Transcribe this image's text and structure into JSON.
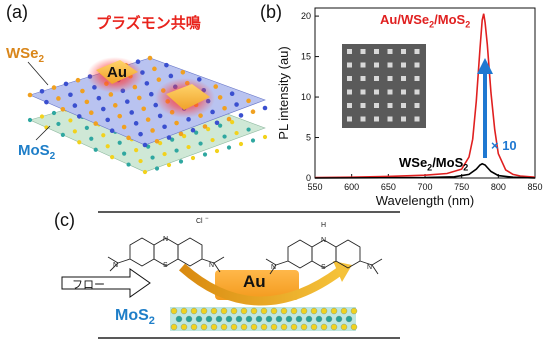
{
  "panel_a": {
    "label": "(a)",
    "title_jp": "プラズモン共鳴",
    "au_label": "Au",
    "wse2_label": "WSe",
    "wse2_sub": "2",
    "mos2_label": "MoS",
    "mos2_sub": "2"
  },
  "panel_b": {
    "label": "(b)",
    "legend_top": "Au/WSe",
    "legend_top_sub1": "2",
    "legend_top_mid": "/MoS",
    "legend_top_sub2": "2",
    "legend_bottom": "WSe",
    "legend_bottom_sub1": "2",
    "legend_bottom_mid": "/MoS",
    "legend_bottom_sub2": "2",
    "enhancement": "× 10",
    "colors": {
      "red": "#e02020",
      "black": "#000000",
      "arrow": "#1f78d1"
    }
  },
  "panel_c": {
    "label": "(c)",
    "flow": "フロー",
    "au_label": "Au",
    "mos2_label": "MoS",
    "mos2_sub": "2",
    "cl_label": "Cl",
    "cl_charge": "−",
    "n_labels": [
      "N",
      "N",
      "N",
      "S",
      "H",
      "N",
      "N",
      "N",
      "S"
    ]
  },
  "chart_data": {
    "type": "line",
    "xlabel": "Wavelength (nm)",
    "ylabel": "PL intensity (au)",
    "xlim": [
      550,
      850
    ],
    "ylim": [
      0,
      21
    ],
    "xticks": [
      550,
      600,
      650,
      700,
      750,
      800,
      850
    ],
    "yticks": [
      0,
      5,
      10,
      15,
      20
    ],
    "series": [
      {
        "name": "Au/WSe2/MoS2",
        "color": "#e02020",
        "x": [
          550,
          600,
          650,
          700,
          730,
          750,
          760,
          765,
          770,
          775,
          778,
          780,
          782,
          785,
          790,
          795,
          800,
          810,
          820,
          830,
          850
        ],
        "y": [
          0.05,
          0.1,
          0.2,
          0.35,
          0.55,
          1.1,
          2.6,
          4.8,
          9.5,
          16.0,
          19.5,
          20.3,
          19.2,
          16.5,
          10.5,
          6.0,
          3.0,
          1.0,
          0.45,
          0.25,
          0.1
        ]
      },
      {
        "name": "WSe2/MoS2",
        "color": "#000000",
        "x": [
          550,
          700,
          740,
          760,
          770,
          775,
          778,
          782,
          785,
          790,
          800,
          820,
          850
        ],
        "y": [
          0.0,
          0.05,
          0.15,
          0.45,
          1.1,
          1.6,
          1.75,
          1.6,
          1.3,
          0.8,
          0.3,
          0.1,
          0.0
        ]
      }
    ]
  }
}
